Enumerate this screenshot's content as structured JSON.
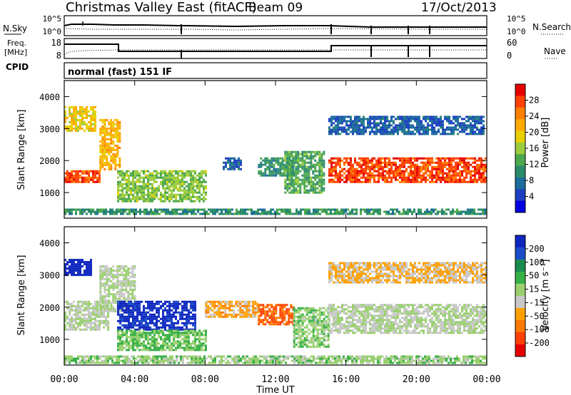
{
  "header": {
    "title": "Christmas Valley East (fitACF)",
    "beam": "Beam 09",
    "date": "17/Oct/2013"
  },
  "panels": {
    "nsky_label": "N.Sky",
    "nsearch_label": "N.Search",
    "noise_ticks": [
      "10^5",
      "10^0"
    ],
    "freq_label_1": "Freq.",
    "freq_label_2": "[MHz]",
    "freq_ticks": [
      "18",
      "8"
    ],
    "nave_label": "Nave",
    "nave_ticks": [
      "60",
      "0"
    ],
    "cpid_label": "CPID",
    "cpid_value": "normal (fast) 151 IF"
  },
  "colorbars": {
    "power": {
      "label": "Power [dB]",
      "ticks": [
        "28",
        "24",
        "20",
        "16",
        "12",
        "8",
        "4"
      ],
      "colors": [
        "#e60000",
        "#ff4000",
        "#ff8000",
        "#ffaa00",
        "#e8d000",
        "#9ccc3c",
        "#4ca84c",
        "#2a8a6c",
        "#1c6c9c",
        "#1c40c0",
        "#0000e0"
      ]
    },
    "velocity": {
      "label": "Velocity [m s⁻¹]",
      "ticks": [
        "200",
        "100",
        "50",
        "15",
        "-15",
        "-50",
        "-100",
        "-200"
      ],
      "colors": [
        "#1028c0",
        "#1c4cc8",
        "#1a8c50",
        "#38b048",
        "#9ad070",
        "#c8c8c8",
        "#ffa000",
        "#ff7a00",
        "#ff4000",
        "#e60000"
      ]
    }
  },
  "axes": {
    "ylabel": "Slant Range [km]",
    "yticks": [
      "4000",
      "3000",
      "2000",
      "1000"
    ],
    "xticks": [
      "00:00",
      "04:00",
      "08:00",
      "12:00",
      "16:00",
      "20:00",
      "00:00"
    ],
    "xlabel": "Time UT"
  },
  "chart_data": [
    {
      "type": "heatmap",
      "name": "Power",
      "xlabel": "Time UT",
      "ylabel": "Slant Range [km]",
      "xlim": [
        0,
        24
      ],
      "ylim": [
        200,
        4500
      ],
      "color_scale": [
        0,
        30
      ],
      "color_unit": "dB",
      "echo_regions": [
        {
          "t": [
            0.0,
            2.0
          ],
          "range_km": [
            1300,
            1700
          ],
          "value": 26
        },
        {
          "t": [
            0.0,
            1.8
          ],
          "range_km": [
            2900,
            3700
          ],
          "value": 18
        },
        {
          "t": [
            2.0,
            3.2
          ],
          "range_km": [
            1700,
            3300
          ],
          "value": 20
        },
        {
          "t": [
            3.0,
            8.0
          ],
          "range_km": [
            700,
            1700
          ],
          "value": 14
        },
        {
          "t": [
            9.0,
            10.0
          ],
          "range_km": [
            1700,
            2100
          ],
          "value": 6
        },
        {
          "t": [
            11.0,
            13.0
          ],
          "range_km": [
            1500,
            2100
          ],
          "value": 10
        },
        {
          "t": [
            12.5,
            14.8
          ],
          "range_km": [
            1000,
            2300
          ],
          "value": 12
        },
        {
          "t": [
            15.0,
            24.0
          ],
          "range_km": [
            1300,
            2100
          ],
          "value": 26
        },
        {
          "t": [
            15.0,
            23.8
          ],
          "range_km": [
            2800,
            3400
          ],
          "value": 6
        },
        {
          "t": [
            0.0,
            24.0
          ],
          "range_km": [
            300,
            500
          ],
          "value": 10
        }
      ]
    },
    {
      "type": "heatmap",
      "name": "Velocity",
      "xlabel": "Time UT",
      "ylabel": "Slant Range [km]",
      "xlim": [
        0,
        24
      ],
      "ylim": [
        200,
        4500
      ],
      "color_scale": [
        -200,
        200
      ],
      "color_unit": "m s-1",
      "echo_regions": [
        {
          "t": [
            0.0,
            2.5
          ],
          "range_km": [
            1300,
            2200
          ],
          "value": 0
        },
        {
          "t": [
            0.0,
            1.5
          ],
          "range_km": [
            3000,
            3500
          ],
          "value": 200
        },
        {
          "t": [
            2.0,
            4.0
          ],
          "range_km": [
            1900,
            3300
          ],
          "value": 0
        },
        {
          "t": [
            3.0,
            7.5
          ],
          "range_km": [
            1300,
            2200
          ],
          "value": 180
        },
        {
          "t": [
            3.0,
            8.0
          ],
          "range_km": [
            700,
            1300
          ],
          "value": 40
        },
        {
          "t": [
            8.0,
            11.0
          ],
          "range_km": [
            1700,
            2200
          ],
          "value": -60
        },
        {
          "t": [
            11.0,
            13.0
          ],
          "range_km": [
            1500,
            2100
          ],
          "value": -120
        },
        {
          "t": [
            13.0,
            15.0
          ],
          "range_km": [
            800,
            2000
          ],
          "value": 30
        },
        {
          "t": [
            15.0,
            24.0
          ],
          "range_km": [
            1200,
            2100
          ],
          "value": 0
        },
        {
          "t": [
            15.0,
            24.0
          ],
          "range_km": [
            2800,
            3400
          ],
          "value": -40
        },
        {
          "t": [
            0.0,
            24.0
          ],
          "range_km": [
            300,
            500
          ],
          "value": 20
        }
      ]
    }
  ]
}
